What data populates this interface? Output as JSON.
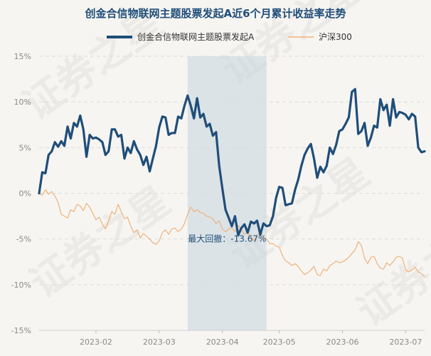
{
  "chart_data": {
    "type": "line",
    "title": "创金合信物联网主题股票发起A近6个月累计收益率走势",
    "xlabel": "",
    "ylabel": "",
    "ylim": [
      -15,
      15
    ],
    "y_ticks": [
      15,
      10,
      5,
      0,
      -5,
      -10,
      -15
    ],
    "y_tick_labels": [
      "15%",
      "10%",
      "5%",
      "0%",
      "-5%",
      "-10%",
      "-15%"
    ],
    "x_ticks": [
      {
        "x": 18,
        "label": "2023-02"
      },
      {
        "x": 38,
        "label": "2023-03"
      },
      {
        "x": 58,
        "label": "2023-04"
      },
      {
        "x": 76,
        "label": "2023-05"
      },
      {
        "x": 96,
        "label": "2023-06"
      },
      {
        "x": 116,
        "label": "2023-07"
      }
    ],
    "grid": "horizontal-dashed",
    "legend_position": "top",
    "colors": {
      "fund": "#1f4e79",
      "index": "#f0b27a",
      "shade": "#c5d3df",
      "grid": "#dcdcdc"
    },
    "series": [
      {
        "name": "创金合信物联网主题股票发起A",
        "values": [
          0,
          2.3,
          2.2,
          4.2,
          4.6,
          5.6,
          5.1,
          5.7,
          5.2,
          7.3,
          6.0,
          7.7,
          7.3,
          8.5,
          7.0,
          4.0,
          6.4,
          6.0,
          6.1,
          5.9,
          5.6,
          4.2,
          4.6,
          7.0,
          7.0,
          6.2,
          6.4,
          3.8,
          5.0,
          4.4,
          5.7,
          4.8,
          4.2,
          3.1,
          4.0,
          2.4,
          3.8,
          5.2,
          7.2,
          8.4,
          8.3,
          6.4,
          6.6,
          6.6,
          8.4,
          8.2,
          9.6,
          10.7,
          9.6,
          8.2,
          10.4,
          8.3,
          8.7,
          7.3,
          7.6,
          6.3,
          6.7,
          3.0,
          0.5,
          -1.8,
          -2.7,
          -3.6,
          -2.5,
          -4.6,
          -3.8,
          -3.4,
          -4.3,
          -3.1,
          -3.3,
          -3.0,
          -4.5,
          -3.3,
          -3.6,
          -3.5,
          -2.5,
          -0.5,
          0.7,
          0.6,
          -1.3,
          -1.2,
          -1.1,
          0.4,
          1.5,
          3.0,
          4.2,
          4.9,
          5.4,
          3.8,
          1.7,
          2.9,
          2.3,
          3.0,
          5.0,
          4.3,
          5.3,
          6.8,
          7.0,
          7.6,
          8.3,
          11.1,
          11.4,
          6.5,
          6.8,
          7.7,
          5.2,
          6.1,
          7.4,
          7.2,
          10.3,
          9.1,
          9.7,
          7.4,
          10.3,
          8.3,
          8.9,
          8.8,
          8.6,
          8.1,
          8.7,
          8.4,
          5.0,
          4.5,
          4.6
        ]
      },
      {
        "name": "沪深300",
        "values": [
          0,
          -0.2,
          0.4,
          -0.1,
          0.2,
          -0.3,
          -1.0,
          -2.3,
          -2.5,
          -2.7,
          -1.8,
          -2.0,
          -1.2,
          -1.4,
          -1.9,
          -1.1,
          -1.5,
          -2.2,
          -2.9,
          -2.6,
          -3.4,
          -3.9,
          -3.0,
          -2.0,
          -2.3,
          -1.2,
          -2.0,
          -2.8,
          -2.6,
          -3.6,
          -4.3,
          -4.0,
          -4.9,
          -4.4,
          -4.7,
          -5.0,
          -5.4,
          -5.6,
          -5.2,
          -4.3,
          -4.0,
          -4.5,
          -3.9,
          -3.8,
          -4.2,
          -3.9,
          -3.3,
          -2.3,
          -1.5,
          -2.0,
          -1.8,
          -2.1,
          -2.2,
          -2.5,
          -2.6,
          -2.8,
          -3.3,
          -3.0,
          -3.9,
          -4.2,
          -3.9,
          -3.8,
          -4.2,
          -3.5,
          -4.0,
          -4.5,
          -4.3,
          -4.8,
          -5.2,
          -4.6,
          -4.2,
          -4.8,
          -5.0,
          -5.5,
          -5.5,
          -5.8,
          -5.9,
          -6.8,
          -7.4,
          -7.6,
          -7.9,
          -7.7,
          -8.0,
          -8.5,
          -8.9,
          -8.7,
          -8.4,
          -8.0,
          -8.9,
          -9.0,
          -8.3,
          -8.5,
          -7.9,
          -7.7,
          -7.4,
          -7.6,
          -7.5,
          -7.3,
          -7.0,
          -6.6,
          -6.2,
          -5.3,
          -5.7,
          -7.1,
          -7.7,
          -7.0,
          -6.9,
          -7.7,
          -8.2,
          -8.3,
          -7.6,
          -7.9,
          -7.5,
          -7.0,
          -6.9,
          -7.1,
          -8.4,
          -8.6,
          -8.4,
          -8.1,
          -8.6,
          -8.8,
          -9.1
        ]
      }
    ],
    "annotation": {
      "label": "最大回撤：-13.67%",
      "from_x": 47,
      "to_x": 72
    },
    "watermark": "证券之星"
  }
}
